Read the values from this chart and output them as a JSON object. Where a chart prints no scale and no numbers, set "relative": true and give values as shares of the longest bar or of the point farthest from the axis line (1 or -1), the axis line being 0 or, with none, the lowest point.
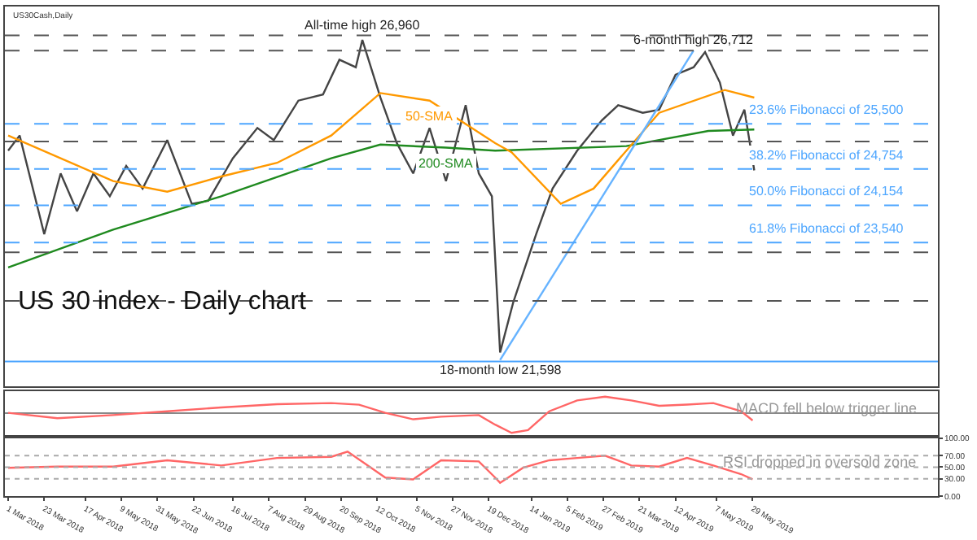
{
  "chart_data": [
    {
      "type": "line",
      "title": "US 30 index - Daily chart",
      "xlim": [
        "2018-02-27",
        "2019-09-19"
      ],
      "ylim": [
        21170,
        27440
      ],
      "tick_labels": false,
      "legend": false,
      "annotations": [
        "US30Cash,Daily",
        {
          "text": "All-time high 26,960",
          "x": "2018-10-03",
          "y": 26960
        },
        {
          "text": "6-month high 26,712",
          "x": "2019-04-23",
          "y": 26712
        },
        {
          "text": "18-month low 21,598",
          "x": "2018-12-26",
          "y": 21598
        }
      ],
      "ref_lines": [
        {
          "axis": "y",
          "value": 25500,
          "label": "23.6% Fibonacci of 25,500",
          "color": "#4da6ff",
          "line_style": "dashed"
        },
        {
          "axis": "y",
          "value": 24754,
          "label": "38.2% Fibonacci of 24,754",
          "color": "#4da6ff",
          "line_style": "dashed"
        },
        {
          "axis": "y",
          "value": 24154,
          "label": "50.0% Fibonacci of 24,154",
          "color": "#4da6ff",
          "line_style": "dashed"
        },
        {
          "axis": "y",
          "value": 23540,
          "label": "61.8% Fibonacci of 23,540",
          "color": "#4da6ff",
          "line_style": "dashed"
        },
        {
          "axis": "y",
          "value": 26963,
          "color": "#555555",
          "line_style": "dashed"
        },
        {
          "axis": "y",
          "value": 26712,
          "color": "#555555",
          "line_style": "dashed"
        },
        {
          "axis": "y",
          "value": 25208,
          "color": "#555555",
          "line_style": "dashed"
        },
        {
          "axis": "y",
          "value": 23378,
          "color": "#555555",
          "line_style": "dashed"
        },
        {
          "axis": "y",
          "value": 22576,
          "color": "#555555",
          "line_style": "dashed"
        },
        {
          "axis": "y",
          "value": 21573,
          "color": "#4da6ff",
          "line_style": "solid"
        }
      ],
      "series": [
        {
          "color": "#444444",
          "x": [
            "2018-03-01",
            "2018-03-08",
            "2018-03-23",
            "2018-04-02",
            "2018-04-12",
            "2018-04-22",
            "2018-05-02",
            "2018-05-12",
            "2018-05-22",
            "2018-06-06",
            "2018-06-21",
            "2018-07-01",
            "2018-07-16",
            "2018-07-31",
            "2018-08-10",
            "2018-08-25",
            "2018-09-09",
            "2018-09-19",
            "2018-09-29",
            "2018-10-03",
            "2018-10-14",
            "2018-10-24",
            "2018-11-03",
            "2018-11-13",
            "2018-11-23",
            "2018-12-05",
            "2018-12-13",
            "2018-12-21",
            "2018-12-26",
            "2019-01-03",
            "2019-01-17",
            "2019-01-27",
            "2019-02-11",
            "2019-02-26",
            "2019-03-08",
            "2019-03-23",
            "2019-04-02",
            "2019-04-12",
            "2019-04-23",
            "2019-04-30",
            "2019-05-09",
            "2019-05-17",
            "2019-05-24",
            "2019-05-30"
          ],
          "values": [
            25057,
            25308,
            23679,
            24682,
            24055,
            24682,
            24305,
            24807,
            24431,
            25233,
            24180,
            24230,
            24932,
            25433,
            25233,
            25885,
            25985,
            26561,
            26436,
            26887,
            25935,
            25183,
            24682,
            25433,
            24556,
            25810,
            24682,
            24305,
            21723,
            22550,
            23679,
            24431,
            25057,
            25558,
            25810,
            25684,
            25735,
            26311,
            26436,
            26687,
            26186,
            25308,
            25735,
            24732
          ]
        },
        {
          "name": "200-SMA",
          "color": "#1f8a1f",
          "x": [
            "2018-03-01",
            "2018-05-04",
            "2018-07-09",
            "2018-09-14",
            "2018-10-14",
            "2018-11-23",
            "2018-12-23",
            "2019-03-13",
            "2019-05-02",
            "2019-05-30"
          ],
          "values": [
            23127,
            23754,
            24305,
            24932,
            25158,
            25108,
            25057,
            25133,
            25383,
            25408
          ]
        },
        {
          "name": "50-SMA",
          "color": "#ff9900",
          "x": [
            "2018-03-01",
            "2018-05-04",
            "2018-06-06",
            "2018-07-09",
            "2018-08-12",
            "2018-09-14",
            "2018-10-14",
            "2018-11-13",
            "2018-12-23",
            "2019-01-02",
            "2019-02-01",
            "2019-02-21",
            "2019-04-02",
            "2019-05-12",
            "2019-05-30"
          ],
          "values": [
            25308,
            24556,
            24380,
            24631,
            24857,
            25308,
            26010,
            25885,
            25183,
            25033,
            24180,
            24431,
            25684,
            26060,
            25935
          ]
        },
        {
          "color": "#66b3ff",
          "x": [
            "2018-12-26",
            "2019-04-23"
          ],
          "values": [
            21598,
            26712
          ]
        }
      ]
    },
    {
      "type": "line",
      "relative": true,
      "xlim": [
        "2018-02-27",
        "2019-09-19"
      ],
      "tick_labels": false,
      "legend": false,
      "annotations": [
        "MACD fell below trigger line"
      ],
      "series": [
        {
          "color": "#ff6666",
          "x": [
            "2018-03-01",
            "2018-03-31",
            "2018-05-04",
            "2018-06-06",
            "2018-07-09",
            "2018-08-12",
            "2018-09-14",
            "2018-10-01",
            "2018-10-17",
            "2018-11-03",
            "2018-11-20",
            "2018-12-13",
            "2018-12-23",
            "2019-01-02",
            "2019-01-12",
            "2019-01-25",
            "2019-02-11",
            "2019-02-28",
            "2019-03-16",
            "2019-04-02",
            "2019-04-19",
            "2019-05-05",
            "2019-05-22",
            "2019-05-29"
          ],
          "values": [
            0,
            -0.27,
            -0.11,
            0.08,
            0.27,
            0.43,
            0.49,
            0.41,
            0,
            -0.32,
            -0.19,
            -0.11,
            -0.59,
            -1,
            -0.86,
            0.08,
            0.62,
            0.81,
            0.62,
            0.35,
            0.41,
            0.49,
            0.08,
            -0.38
          ]
        }
      ]
    },
    {
      "type": "line",
      "xlim": [
        "2018-02-27",
        "2019-09-19"
      ],
      "ylim": [
        0,
        100
      ],
      "legend": false,
      "yticks": [
        {
          "value": 0,
          "label": "0.00"
        },
        {
          "value": 30,
          "label": "30.00"
        },
        {
          "value": 50,
          "label": "50.00"
        },
        {
          "value": 70,
          "label": "70.00"
        },
        {
          "value": 100,
          "label": "100.00"
        }
      ],
      "xticks": [
        {
          "value": "2018-03-01",
          "label": "1 Mar 2018"
        },
        {
          "value": "2018-03-23",
          "label": "23 Mar 2018"
        },
        {
          "value": "2018-04-17",
          "label": "17 Apr 2018"
        },
        {
          "value": "2018-05-09",
          "label": "9 May 2018"
        },
        {
          "value": "2018-05-31",
          "label": "31 May 2018"
        },
        {
          "value": "2018-06-22",
          "label": "22 Jun 2018"
        },
        {
          "value": "2018-07-16",
          "label": "16 Jul 2018"
        },
        {
          "value": "2018-08-07",
          "label": "7 Aug 2018"
        },
        {
          "value": "2018-08-29",
          "label": "29 Aug 2018"
        },
        {
          "value": "2018-09-20",
          "label": "20 Sep 2018"
        },
        {
          "value": "2018-10-12",
          "label": "12 Oct 2018"
        },
        {
          "value": "2018-11-05",
          "label": "5 Nov 2018"
        },
        {
          "value": "2018-11-27",
          "label": "27 Nov 2018"
        },
        {
          "value": "2018-12-19",
          "label": "19 Dec 2018"
        },
        {
          "value": "2019-01-14",
          "label": "14 Jan 2019"
        },
        {
          "value": "2019-02-05",
          "label": "5 Feb 2019"
        },
        {
          "value": "2019-02-27",
          "label": "27 Feb 2019"
        },
        {
          "value": "2019-03-21",
          "label": "21 Mar 2019"
        },
        {
          "value": "2019-04-12",
          "label": "12 Apr 2019"
        },
        {
          "value": "2019-05-07",
          "label": "7 May 2019"
        },
        {
          "value": "2019-05-29",
          "label": "29 May 2019"
        }
      ],
      "annotations": [
        "RSI dropped in oversold zone"
      ],
      "ref_lines": [
        {
          "axis": "y",
          "value": 70,
          "color": "#aaaaaa",
          "line_style": "dotted"
        },
        {
          "axis": "y",
          "value": 50,
          "color": "#aaaaaa",
          "line_style": "dotted"
        },
        {
          "axis": "y",
          "value": 30,
          "color": "#aaaaaa",
          "line_style": "dotted"
        }
      ],
      "series": [
        {
          "color": "#ff6666",
          "x": [
            "2018-03-01",
            "2018-03-31",
            "2018-05-04",
            "2018-06-06",
            "2018-07-09",
            "2018-08-12",
            "2018-09-14",
            "2018-09-24",
            "2018-10-17",
            "2018-11-03",
            "2018-11-20",
            "2018-12-13",
            "2018-12-23",
            "2018-12-26",
            "2019-01-09",
            "2019-01-25",
            "2019-02-11",
            "2019-02-28",
            "2019-03-16",
            "2019-04-02",
            "2019-04-19",
            "2019-05-05",
            "2019-05-22",
            "2019-05-29"
          ],
          "values": [
            49,
            51,
            51,
            62,
            53,
            66,
            68,
            77,
            32,
            29,
            62,
            60,
            32,
            23,
            49,
            62,
            66,
            70,
            53,
            51,
            66,
            53,
            38,
            29
          ]
        }
      ]
    }
  ]
}
